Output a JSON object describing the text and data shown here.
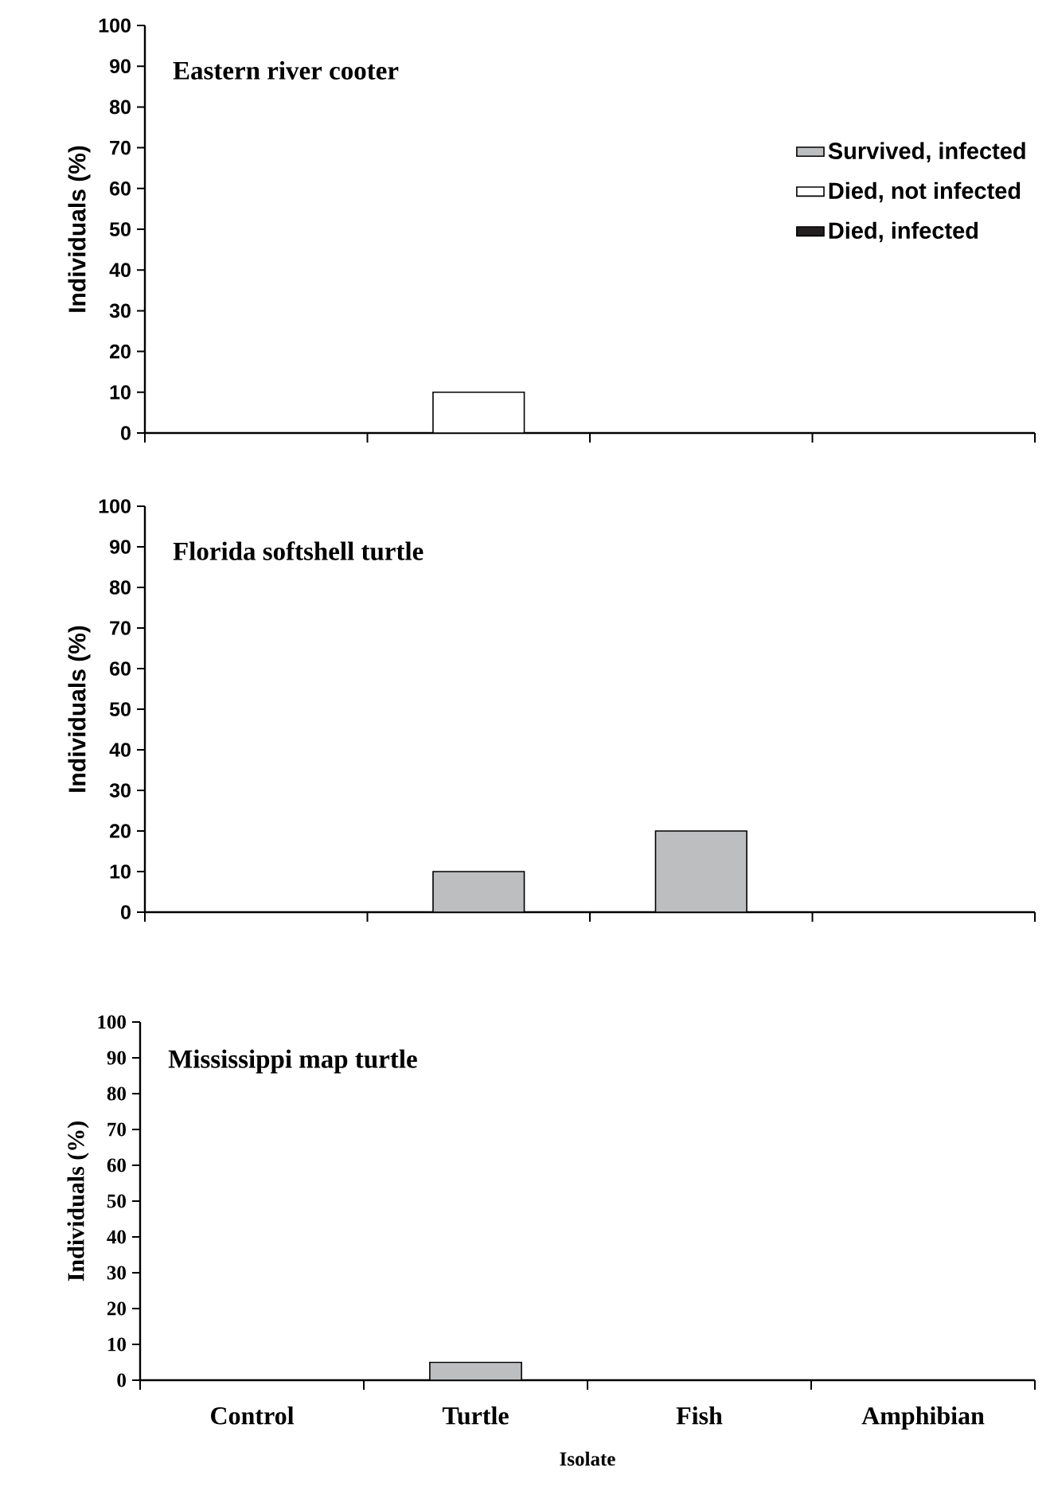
{
  "chart_data": [
    {
      "type": "bar",
      "stacked": true,
      "title": "Eastern river cooter",
      "ylabel": "Individuals (%)",
      "categories": [
        null,
        null,
        null,
        null
      ],
      "tick_labels": "y",
      "legend": "right",
      "ylim": [
        0,
        100
      ],
      "yticks": [
        0,
        10,
        20,
        30,
        40,
        50,
        60,
        70,
        80,
        90,
        100
      ],
      "series": [
        {
          "name": "Survived, infected",
          "color": "#bcbec0",
          "values": [
            0,
            0,
            0,
            0
          ]
        },
        {
          "name": "Died, not infected",
          "color": "#ffffff",
          "values": [
            0,
            10,
            0,
            0
          ]
        },
        {
          "name": "Died, infected",
          "color": "#231f20",
          "values": [
            0,
            0,
            0,
            0
          ]
        }
      ]
    },
    {
      "type": "bar",
      "stacked": true,
      "title": "Florida softshell turtle",
      "ylabel": "Individuals (%)",
      "categories": [
        null,
        null,
        null,
        null
      ],
      "tick_labels": "y",
      "ylim": [
        0,
        100
      ],
      "yticks": [
        0,
        10,
        20,
        30,
        40,
        50,
        60,
        70,
        80,
        90,
        100
      ],
      "series": [
        {
          "color": "#bcbec0",
          "values": [
            0,
            10,
            20,
            0
          ]
        },
        {
          "color": "#ffffff",
          "values": [
            0,
            0,
            0,
            0
          ]
        },
        {
          "color": "#231f20",
          "values": [
            0,
            0,
            0,
            0
          ]
        }
      ]
    },
    {
      "type": "bar",
      "stacked": true,
      "title": "Mississippi map turtle",
      "ylabel": "Individuals (%)",
      "xlabel": "Isolate",
      "categories": [
        "Control",
        "Turtle",
        "Fish",
        "Amphibian"
      ],
      "ylim": [
        0,
        100
      ],
      "yticks": [
        0,
        10,
        20,
        30,
        40,
        50,
        60,
        70,
        80,
        90,
        100
      ],
      "series": [
        {
          "color": "#bcbec0",
          "values": [
            0,
            5,
            0,
            0
          ]
        },
        {
          "color": "#ffffff",
          "values": [
            0,
            0,
            0,
            0
          ]
        },
        {
          "color": "#231f20",
          "values": [
            0,
            0,
            0,
            0
          ]
        }
      ]
    }
  ]
}
